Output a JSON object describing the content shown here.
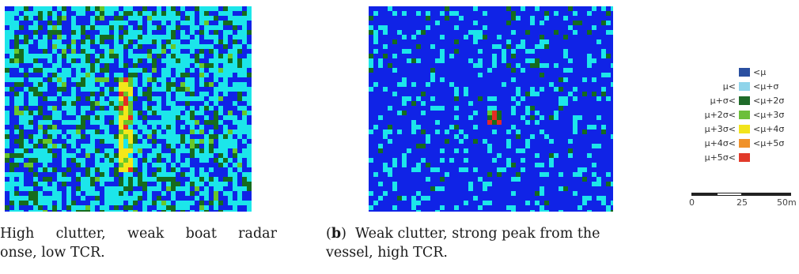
{
  "panels": [
    {
      "id": "a",
      "subject": "High clutter, weak boat radar response"
    },
    {
      "id": "b",
      "subject": "Weak clutter, strong peak from the vessel"
    }
  ],
  "colors": {
    "below_mean": "#1023e6",
    "mu_to_mu1s": "#1ce6ea",
    "mu1s_to_mu2s": "#166b1e",
    "mu2s_to_mu3s": "#68c72a",
    "mu3s_to_mu4s": "#f2e71a",
    "mu4s_to_mu5s": "#ee8a22",
    "above_mu5s": "#e42d23"
  },
  "legend": {
    "items": [
      {
        "left": "",
        "right": "<μ",
        "color": "#2a4fa0"
      },
      {
        "left": "μ<",
        "right": "<μ+σ",
        "color": "#8fd4ea"
      },
      {
        "left": "μ+σ<",
        "right": "<μ+2σ",
        "color": "#1f6b2a"
      },
      {
        "left": "μ+2σ<",
        "right": "<μ+3σ",
        "color": "#6cbf3a"
      },
      {
        "left": "μ+3σ<",
        "right": "<μ+4σ",
        "color": "#f2e41c"
      },
      {
        "left": "μ+4σ<",
        "right": "<μ+5σ",
        "color": "#f0922a"
      },
      {
        "left": "μ+5σ<",
        "right": "",
        "color": "#e13a2a"
      }
    ]
  },
  "scalebar": {
    "ticks": [
      "0",
      "25",
      "50m"
    ]
  },
  "captions": {
    "a": {
      "line1": [
        "High",
        "clutter,",
        "weak",
        "boat",
        "radar"
      ],
      "line2": "onse, low TCR."
    },
    "b": {
      "label": "b",
      "open": "(",
      "close": ")",
      "line1_rest": "  Weak clutter, strong peak from the",
      "line2": "vessel, high TCR."
    }
  }
}
